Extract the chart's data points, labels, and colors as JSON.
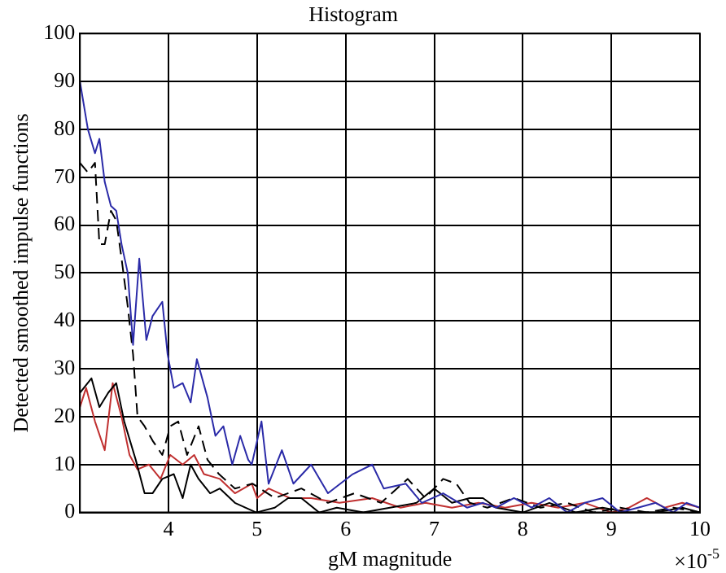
{
  "chart_data": {
    "type": "line",
    "title": "Histogram",
    "xlabel": "gM magnitude",
    "ylabel": "Detected smoothed impulse functions",
    "annotations": [
      "×10$^{-5}$"
    ],
    "xlim": [
      3,
      10
    ],
    "xticks": [
      4,
      5,
      6,
      7,
      8,
      9,
      10
    ],
    "ylim": [
      0,
      100
    ],
    "yticks": [
      0,
      10,
      20,
      30,
      40,
      50,
      60,
      70,
      80,
      90,
      100
    ],
    "grid": true,
    "marker": "none",
    "series": [
      {
        "color": "#2b2ba8",
        "line_style": "solid",
        "x": [
          3.0,
          3.09,
          3.17,
          3.22,
          3.28,
          3.35,
          3.41,
          3.47,
          3.54,
          3.6,
          3.67,
          3.75,
          3.82,
          3.93,
          3.99,
          4.06,
          4.16,
          4.25,
          4.32,
          4.44,
          4.53,
          4.62,
          4.72,
          4.81,
          4.9,
          4.94,
          5.05,
          5.13,
          5.28,
          5.41,
          5.61,
          5.8,
          6.08,
          6.3,
          6.43,
          6.68,
          6.86,
          7.1,
          7.37,
          7.55,
          7.7,
          7.9,
          8.1,
          8.3,
          8.5,
          8.7,
          8.9,
          9.1,
          9.3,
          9.5,
          9.7,
          9.85,
          10
        ],
        "values": [
          90,
          80,
          75,
          78,
          69,
          64,
          63,
          56,
          50,
          35,
          53,
          36,
          41,
          44,
          33,
          26,
          27,
          23,
          32,
          24,
          16,
          18,
          10,
          16,
          11,
          10,
          19,
          6,
          13,
          6,
          10,
          4,
          8,
          10,
          5,
          6,
          2,
          4,
          1,
          2,
          1,
          3,
          1,
          3,
          0,
          2,
          3,
          0,
          1,
          2,
          0,
          2,
          1
        ]
      },
      {
        "color": "#000000",
        "line_style": "dashed",
        "x": [
          3.0,
          3.09,
          3.17,
          3.22,
          3.28,
          3.35,
          3.41,
          3.47,
          3.54,
          3.6,
          3.65,
          3.73,
          3.82,
          3.93,
          4.02,
          4.11,
          4.21,
          4.34,
          4.44,
          4.57,
          4.75,
          4.95,
          5.2,
          5.5,
          5.8,
          6.1,
          6.4,
          6.7,
          6.9,
          7.1,
          7.25,
          7.4,
          7.6,
          7.9,
          8.2,
          8.5,
          8.8,
          9.1,
          9.4,
          9.7,
          10
        ],
        "values": [
          73,
          71,
          73,
          56,
          56,
          63,
          61,
          53,
          43,
          33,
          20,
          18,
          15,
          12,
          18,
          19,
          12,
          18,
          11,
          8,
          5,
          6,
          3,
          5,
          2,
          4,
          2,
          7,
          3,
          7,
          6,
          2,
          1,
          3,
          1,
          2,
          0,
          1,
          0,
          1,
          0
        ]
      },
      {
        "color": "#000000",
        "line_style": "solid",
        "x": [
          3.0,
          3.13,
          3.22,
          3.32,
          3.41,
          3.5,
          3.63,
          3.73,
          3.82,
          3.93,
          4.06,
          4.16,
          4.25,
          4.34,
          4.47,
          4.58,
          4.75,
          4.99,
          5.2,
          5.35,
          5.5,
          5.7,
          5.9,
          6.2,
          6.5,
          6.8,
          7.0,
          7.2,
          7.4,
          7.55,
          7.7,
          8.0,
          8.3,
          8.6,
          8.9,
          9.2,
          9.5,
          9.8,
          10
        ],
        "values": [
          25,
          28,
          22,
          25,
          27,
          19,
          11,
          4,
          4,
          7,
          8,
          3,
          10,
          7,
          4,
          5,
          2,
          0,
          1,
          3,
          3,
          0,
          1,
          0,
          1,
          2,
          5,
          2,
          3,
          3,
          1,
          0,
          2,
          0,
          1,
          0,
          0,
          1,
          0
        ]
      },
      {
        "color": "#c03030",
        "line_style": "solid",
        "x": [
          3.0,
          3.07,
          3.17,
          3.28,
          3.37,
          3.47,
          3.56,
          3.65,
          3.78,
          3.91,
          4.02,
          4.16,
          4.29,
          4.4,
          4.58,
          4.75,
          4.94,
          5.0,
          5.13,
          5.37,
          5.61,
          5.93,
          6.3,
          6.62,
          6.9,
          7.2,
          7.5,
          7.8,
          8.1,
          8.4,
          8.7,
          9.0,
          9.2,
          9.4,
          9.6,
          9.8,
          10
        ],
        "values": [
          22,
          26,
          19,
          13,
          27,
          20,
          12,
          9,
          10,
          7,
          12,
          10,
          12,
          8,
          7,
          4,
          6,
          3,
          5,
          3,
          3,
          2,
          3,
          1,
          2,
          1,
          2,
          1,
          2,
          1,
          2,
          0,
          1,
          3,
          1,
          2,
          1
        ]
      }
    ]
  }
}
